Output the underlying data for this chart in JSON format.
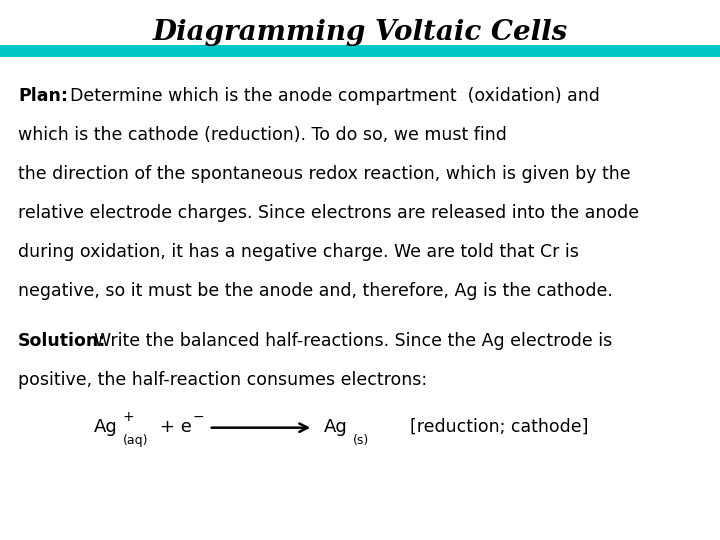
{
  "title": "Diagramming Voltaic Cells",
  "title_fontsize": 20,
  "teal_bar_color": "#00C8C8",
  "background_color": "#FFFFFF",
  "text_color": "#000000",
  "body_fontsize": 12.5,
  "plan_line1": "Plan:  Determine which is the anode compartment  (oxidation) and",
  "plan_line2": "which is the cathode (reduction). To do so, we must find",
  "plan_line3": "the direction of the spontaneous redox reaction, which is given by the",
  "plan_line4": "relative electrode charges. Since electrons are released into the anode",
  "plan_line5": "during oxidation, it has a negative charge. We are told that Cr is",
  "plan_line6": "negative, so it must be the anode and, therefore, Ag is the cathode.",
  "solution_line1": "Solution:  Write the balanced half-reactions. Since the Ag electrode is",
  "solution_line2": "positive, the half-reaction consumes electrons:",
  "eq_label_text": "[reduction; cathode]"
}
